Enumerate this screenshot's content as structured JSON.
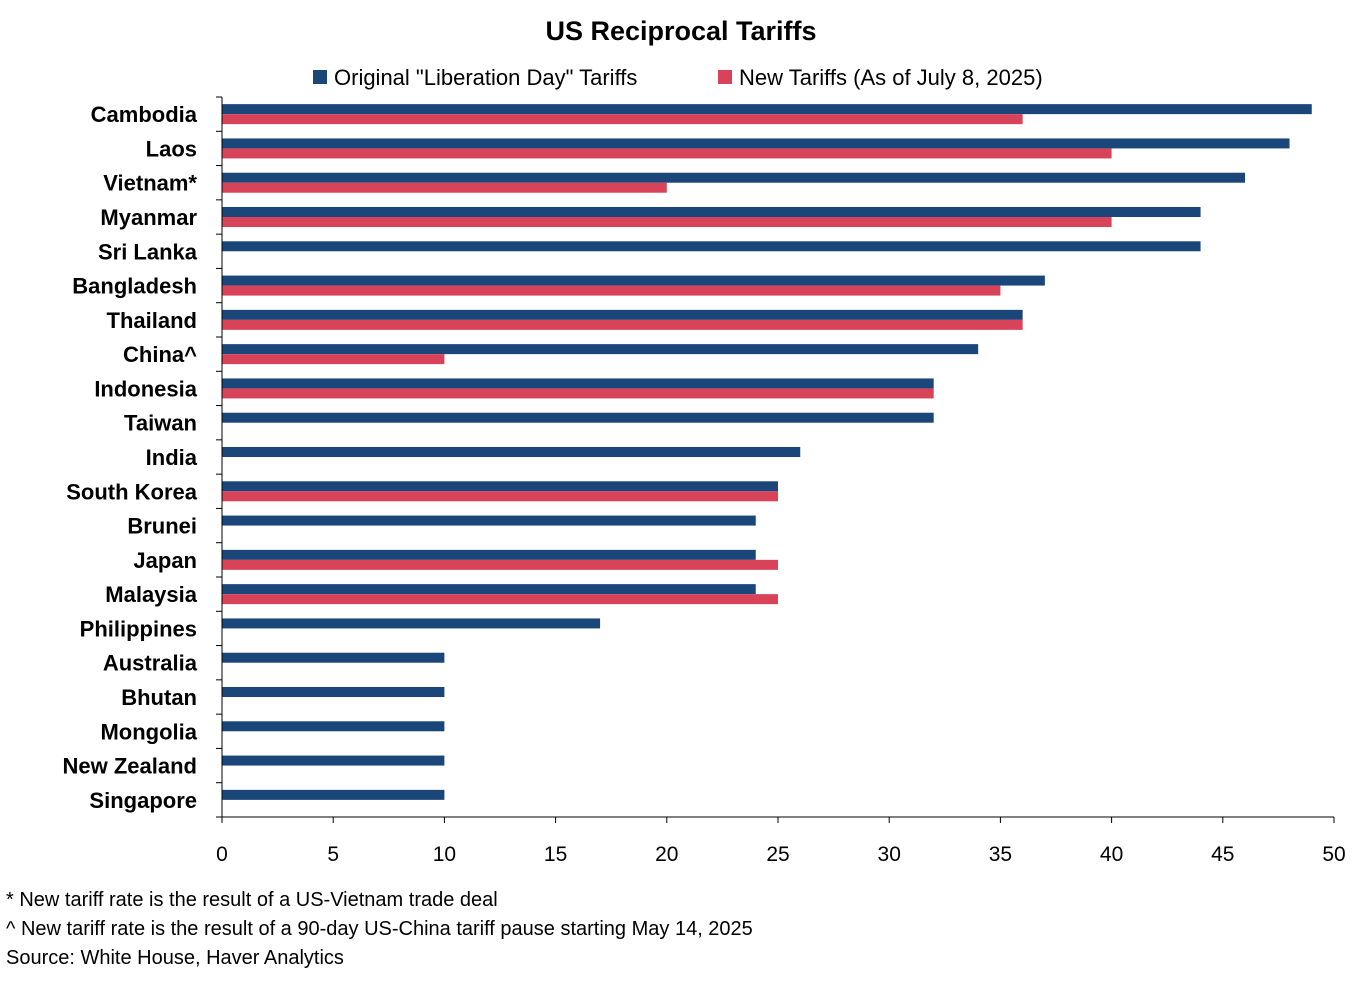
{
  "chart_data": {
    "type": "bar",
    "orientation": "horizontal",
    "title": "US Reciprocal Tariffs",
    "xlabel": "",
    "ylabel": "",
    "xlim": [
      0,
      50
    ],
    "xticks": [
      0,
      5,
      10,
      15,
      20,
      25,
      30,
      35,
      40,
      45,
      50
    ],
    "grid": false,
    "legend_position": "top",
    "categories": [
      "Cambodia",
      "Laos",
      "Vietnam*",
      "Myanmar",
      "Sri Lanka",
      "Bangladesh",
      "Thailand",
      "China^",
      "Indonesia",
      "Taiwan",
      "India",
      "South Korea",
      "Brunei",
      "Japan",
      "Malaysia",
      "Philippines",
      "Australia",
      "Bhutan",
      "Mongolia",
      "New Zealand",
      "Singapore"
    ],
    "series": [
      {
        "name": "Original \"Liberation Day\" Tariffs",
        "color": "#1b4679",
        "values": [
          49,
          48,
          46,
          44,
          44,
          37,
          36,
          34,
          32,
          32,
          26,
          25,
          24,
          24,
          24,
          17,
          10,
          10,
          10,
          10,
          10
        ]
      },
      {
        "name": "New Tariffs (As of July 8, 2025)",
        "color": "#d9435a",
        "values": [
          36,
          40,
          20,
          40,
          null,
          35,
          36,
          10,
          32,
          null,
          null,
          25,
          null,
          25,
          25,
          null,
          null,
          null,
          null,
          null,
          null
        ]
      }
    ]
  },
  "notes": [
    "* New tariff rate is the result of a US-Vietnam trade deal",
    "^ New tariff rate is the result of a 90-day US-China tariff pause starting May 14, 2025",
    "Source: White House, Haver Analytics"
  ]
}
